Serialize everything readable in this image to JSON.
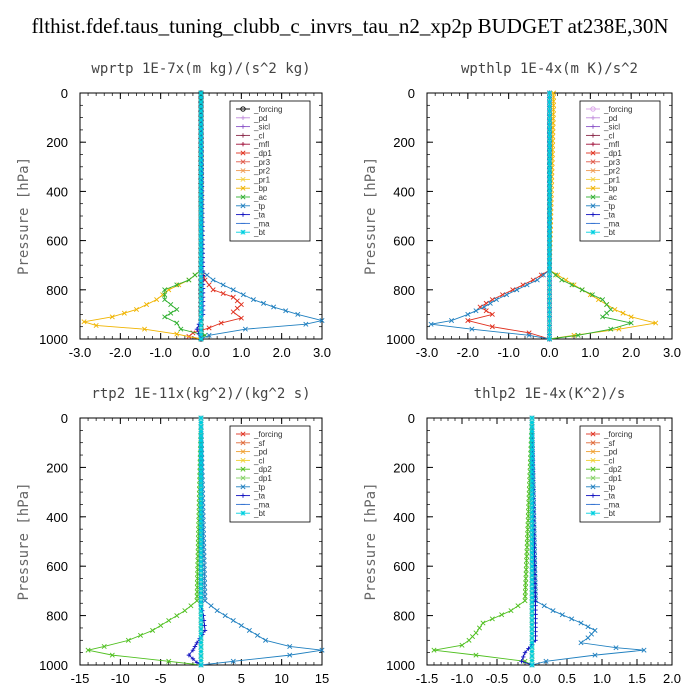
{
  "main_title": "flthist.fdef.taus_tuning_clubb_c_invrs_tau_n2_xp2p  BUDGET at238E,30N",
  "chart_data": [
    {
      "type": "line",
      "title": "wprtp   1E-7x(m kg)/(s^2 kg)",
      "ylabel": "Pressure [hPa]",
      "xlim": [
        -3,
        3
      ],
      "ylim": [
        1000,
        0
      ],
      "xticks": [
        "-3.0",
        "-2.0",
        "-1.0",
        "0.0",
        "1.0",
        "2.0",
        "3.0"
      ],
      "xtick_values": [
        -3,
        -2,
        -1,
        0,
        1,
        2,
        3
      ],
      "yticks": [
        "0",
        "200",
        "400",
        "600",
        "800",
        "1000"
      ],
      "ytick_values": [
        0,
        200,
        400,
        600,
        800,
        1000
      ],
      "grid": false,
      "legend_position": "top-right",
      "series": [
        {
          "name": "_forcing",
          "color": "#000000",
          "marker": "o",
          "p": [
            0,
            740,
            800,
            850,
            900,
            940,
            970,
            1000
          ],
          "x": [
            0,
            0,
            0,
            0,
            0,
            0,
            0,
            0
          ]
        },
        {
          "name": "_pd",
          "color": "#c08bdc",
          "marker": "+",
          "p": [
            0,
            1000
          ],
          "x": [
            0,
            0
          ]
        },
        {
          "name": "_sicl",
          "color": "#8a55c8",
          "marker": "+",
          "p": [
            0,
            1000
          ],
          "x": [
            0,
            0
          ]
        },
        {
          "name": "_cl",
          "color": "#8b2a4a",
          "marker": "+",
          "p": [
            0,
            1000
          ],
          "x": [
            0,
            0
          ]
        },
        {
          "name": "_mfl",
          "color": "#a0103a",
          "marker": "+",
          "p": [
            0,
            1000
          ],
          "x": [
            0,
            0
          ]
        },
        {
          "name": "_dp1",
          "color": "#e0301e",
          "marker": "x",
          "p": [
            0,
            720,
            760,
            800,
            830,
            860,
            890,
            915,
            935,
            955,
            975,
            990,
            1000
          ],
          "x": [
            0,
            0,
            0.1,
            0.3,
            0.8,
            1.0,
            0.8,
            1.0,
            0.5,
            0.2,
            -0.2,
            -0.3,
            0
          ]
        },
        {
          "name": "_pr3",
          "color": "#e05a4a",
          "marker": "x",
          "p": [
            0,
            1000
          ],
          "x": [
            0,
            0
          ]
        },
        {
          "name": "_pr2",
          "color": "#f09a50",
          "marker": "x",
          "p": [
            0,
            1000
          ],
          "x": [
            0,
            0
          ]
        },
        {
          "name": "_pr1",
          "color": "#f5d040",
          "marker": "x",
          "p": [
            0,
            1000
          ],
          "x": [
            0,
            0
          ]
        },
        {
          "name": "_bp",
          "color": "#f0b400",
          "marker": "x",
          "p": [
            0,
            720,
            760,
            800,
            840,
            880,
            910,
            930,
            945,
            960,
            980,
            1000
          ],
          "x": [
            0,
            0,
            -0.3,
            -0.8,
            -1.1,
            -1.6,
            -2.2,
            -2.9,
            -2.6,
            -1.4,
            -0.6,
            0
          ]
        },
        {
          "name": "_ac",
          "color": "#30b030",
          "marker": "x",
          "p": [
            0,
            720,
            760,
            800,
            840,
            880,
            910,
            935,
            960,
            985,
            1000
          ],
          "x": [
            0,
            0,
            -0.3,
            -0.9,
            -0.9,
            -0.6,
            -0.9,
            -0.6,
            -0.5,
            0.1,
            0
          ]
        },
        {
          "name": "_tp",
          "color": "#2080c0",
          "marker": "x",
          "p": [
            0,
            720,
            760,
            800,
            840,
            870,
            900,
            925,
            940,
            960,
            985,
            1000
          ],
          "x": [
            0,
            0,
            0.3,
            0.8,
            1.3,
            1.8,
            2.4,
            3.0,
            2.6,
            1.1,
            0.2,
            0
          ]
        },
        {
          "name": "_ta",
          "color": "#1010c0",
          "marker": "+",
          "p": [
            0,
            760,
            900,
            960,
            1000
          ],
          "x": [
            0,
            0.05,
            0.05,
            -0.1,
            0
          ]
        },
        {
          "name": "_ma",
          "color": "#3070d0",
          "marker": "-",
          "p": [
            0,
            1000
          ],
          "x": [
            0,
            0
          ]
        },
        {
          "name": "_bt",
          "color": "#00d0e0",
          "marker": "*",
          "p": [
            0,
            1000
          ],
          "x": [
            0,
            0
          ]
        }
      ]
    },
    {
      "type": "line",
      "title": "wpthlp   1E-4x(m K)/s^2",
      "ylabel": "Pressure [hPa]",
      "xlim": [
        -3,
        3
      ],
      "ylim": [
        1000,
        0
      ],
      "xticks": [
        "-3.0",
        "-2.0",
        "-1.0",
        "0.0",
        "1.0",
        "2.0",
        "3.0"
      ],
      "xtick_values": [
        -3,
        -2,
        -1,
        0,
        1,
        2,
        3
      ],
      "yticks": [
        "0",
        "200",
        "400",
        "600",
        "800",
        "1000"
      ],
      "ytick_values": [
        0,
        200,
        400,
        600,
        800,
        1000
      ],
      "grid": false,
      "legend_position": "top-right",
      "series": [
        {
          "name": "_forcing",
          "color": "#d8a0e8",
          "marker": "o",
          "p": [
            0,
            1000
          ],
          "x": [
            0,
            0
          ]
        },
        {
          "name": "_pd",
          "color": "#c08bdc",
          "marker": "+",
          "p": [
            0,
            1000
          ],
          "x": [
            0,
            0
          ]
        },
        {
          "name": "_sicl",
          "color": "#8a55c8",
          "marker": "+",
          "p": [
            0,
            1000
          ],
          "x": [
            0,
            0
          ]
        },
        {
          "name": "_cl",
          "color": "#8b2a4a",
          "marker": "+",
          "p": [
            0,
            1000
          ],
          "x": [
            0,
            0
          ]
        },
        {
          "name": "_mfl",
          "color": "#a0103a",
          "marker": "+",
          "p": [
            0,
            1000
          ],
          "x": [
            0,
            0
          ]
        },
        {
          "name": "_dp1",
          "color": "#e0301e",
          "marker": "x",
          "p": [
            0,
            720,
            760,
            800,
            840,
            870,
            900,
            925,
            950,
            975,
            1000
          ],
          "x": [
            0,
            0,
            -0.4,
            -0.9,
            -1.4,
            -1.7,
            -1.4,
            -2.0,
            -1.4,
            -0.5,
            0
          ]
        },
        {
          "name": "_pr3",
          "color": "#e05a4a",
          "marker": "x",
          "p": [
            0,
            1000
          ],
          "x": [
            0,
            0
          ]
        },
        {
          "name": "_pr2",
          "color": "#f09a50",
          "marker": "x",
          "p": [
            0,
            1000
          ],
          "x": [
            0,
            0
          ]
        },
        {
          "name": "_pr1",
          "color": "#f5d040",
          "marker": "x",
          "p": [
            0,
            1000
          ],
          "x": [
            0,
            0
          ]
        },
        {
          "name": "_bp",
          "color": "#f0b400",
          "marker": "x",
          "p": [
            0,
            0,
            50,
            720,
            760,
            800,
            840,
            880,
            910,
            935,
            960,
            985,
            1000
          ],
          "x": [
            0,
            0.1,
            0.1,
            0,
            0.4,
            0.8,
            1.2,
            1.6,
            2.0,
            2.6,
            1.7,
            0.6,
            0
          ]
        },
        {
          "name": "_ac",
          "color": "#30b030",
          "marker": "x",
          "p": [
            0,
            720,
            760,
            800,
            840,
            880,
            910,
            935,
            960,
            985,
            1000
          ],
          "x": [
            0,
            0,
            0.3,
            0.8,
            1.3,
            1.5,
            1.3,
            2.0,
            1.5,
            0.7,
            0
          ]
        },
        {
          "name": "_tp",
          "color": "#2080c0",
          "marker": "x",
          "p": [
            0,
            720,
            760,
            800,
            840,
            870,
            900,
            925,
            940,
            960,
            985,
            1000
          ],
          "x": [
            0,
            0,
            -0.3,
            -0.8,
            -1.3,
            -1.6,
            -2.0,
            -2.4,
            -2.9,
            -1.9,
            -0.5,
            0
          ]
        },
        {
          "name": "_ta",
          "color": "#1010c0",
          "marker": "+",
          "p": [
            0,
            1000
          ],
          "x": [
            0,
            0
          ]
        },
        {
          "name": "_ma",
          "color": "#3070d0",
          "marker": "-",
          "p": [
            0,
            1000
          ],
          "x": [
            0,
            0
          ]
        },
        {
          "name": "_bt",
          "color": "#00d0e0",
          "marker": "*",
          "p": [
            0,
            1000
          ],
          "x": [
            0,
            0
          ]
        }
      ]
    },
    {
      "type": "line",
      "title": "rtp2   1E-11x(kg^2)/(kg^2 s)",
      "ylabel": "Pressure [hPa]",
      "xlim": [
        -15,
        15
      ],
      "ylim": [
        1000,
        0
      ],
      "xticks": [
        "-15",
        "-10",
        "-5",
        "0",
        "5",
        "10",
        "15"
      ],
      "xtick_values": [
        -15,
        -10,
        -5,
        0,
        5,
        10,
        15
      ],
      "yticks": [
        "0",
        "200",
        "400",
        "600",
        "800",
        "1000"
      ],
      "ytick_values": [
        0,
        200,
        400,
        600,
        800,
        1000
      ],
      "grid": false,
      "legend_position": "top-right",
      "series": [
        {
          "name": "_forcing",
          "color": "#e03020",
          "marker": "x",
          "p": [
            0,
            1000
          ],
          "x": [
            0,
            0
          ]
        },
        {
          "name": "_sf",
          "color": "#e06a3a",
          "marker": "x",
          "p": [
            0,
            1000
          ],
          "x": [
            0,
            0
          ]
        },
        {
          "name": "_pd",
          "color": "#f0a030",
          "marker": "x",
          "p": [
            0,
            1000
          ],
          "x": [
            0,
            0
          ]
        },
        {
          "name": "_cl",
          "color": "#f0d030",
          "marker": "x",
          "p": [
            0,
            1000
          ],
          "x": [
            0,
            0
          ]
        },
        {
          "name": "_dp2",
          "color": "#50c020",
          "marker": "x",
          "p": [
            0,
            740,
            780,
            820,
            860,
            900,
            925,
            940,
            960,
            985,
            1000
          ],
          "x": [
            0,
            -0.5,
            -2,
            -4,
            -6,
            -9,
            -12,
            -14,
            -11,
            -4,
            0
          ]
        },
        {
          "name": "_dp1",
          "color": "#80d060",
          "marker": "x",
          "p": [
            0,
            1000
          ],
          "x": [
            0,
            0
          ]
        },
        {
          "name": "_tp",
          "color": "#2080c0",
          "marker": "x",
          "p": [
            0,
            740,
            780,
            820,
            860,
            900,
            925,
            940,
            960,
            985,
            1000
          ],
          "x": [
            0,
            0.5,
            2,
            4,
            6,
            8,
            11,
            15,
            11,
            4,
            0
          ]
        },
        {
          "name": "_ta",
          "color": "#1010c0",
          "marker": "+",
          "p": [
            0,
            760,
            800,
            860,
            910,
            940,
            960,
            990,
            1000
          ],
          "x": [
            0,
            0,
            0.3,
            0.5,
            -0.5,
            -1,
            -1.5,
            -0.5,
            0
          ]
        },
        {
          "name": "_ma",
          "color": "#3070d0",
          "marker": "-",
          "p": [
            0,
            1000
          ],
          "x": [
            0,
            0
          ]
        },
        {
          "name": "_bt",
          "color": "#00d0e0",
          "marker": "*",
          "p": [
            0,
            1000
          ],
          "x": [
            0,
            0
          ]
        }
      ]
    },
    {
      "type": "line",
      "title": "thlp2   1E-4x(K^2)/s",
      "ylabel": "Pressure [hPa]",
      "xlim": [
        -1.5,
        2.0
      ],
      "ylim": [
        1000,
        0
      ],
      "xticks": [
        "-1.5",
        "-1.0",
        "-0.5",
        "0.0",
        "0.5",
        "1.0",
        "1.5",
        "2.0"
      ],
      "xtick_values": [
        -1.5,
        -1.0,
        -0.5,
        0.0,
        0.5,
        1.0,
        1.5,
        2.0
      ],
      "yticks": [
        "0",
        "200",
        "400",
        "600",
        "800",
        "1000"
      ],
      "ytick_values": [
        0,
        200,
        400,
        600,
        800,
        1000
      ],
      "grid": false,
      "legend_position": "top-right",
      "series": [
        {
          "name": "_forcing",
          "color": "#e03020",
          "marker": "x",
          "p": [
            0,
            1000
          ],
          "x": [
            0,
            0
          ]
        },
        {
          "name": "_sf",
          "color": "#e06a3a",
          "marker": "x",
          "p": [
            0,
            1000
          ],
          "x": [
            0,
            0
          ]
        },
        {
          "name": "_pd",
          "color": "#f0a030",
          "marker": "x",
          "p": [
            0,
            1000
          ],
          "x": [
            0,
            0
          ]
        },
        {
          "name": "_cl",
          "color": "#f0d030",
          "marker": "x",
          "p": [
            0,
            1000
          ],
          "x": [
            0,
            0
          ]
        },
        {
          "name": "_dp2",
          "color": "#50c020",
          "marker": "x",
          "p": [
            0,
            740,
            780,
            830,
            870,
            900,
            920,
            940,
            960,
            985,
            1000
          ],
          "x": [
            0,
            -0.1,
            -0.3,
            -0.7,
            -0.8,
            -0.9,
            -1.0,
            -1.4,
            -0.8,
            -0.1,
            0
          ]
        },
        {
          "name": "_dp1",
          "color": "#80d060",
          "marker": "x",
          "p": [
            0,
            1000
          ],
          "x": [
            0,
            0
          ]
        },
        {
          "name": "_tp",
          "color": "#2080c0",
          "marker": "x",
          "p": [
            0,
            740,
            780,
            830,
            860,
            890,
            910,
            930,
            940,
            960,
            985,
            1000
          ],
          "x": [
            0,
            0.05,
            0.3,
            0.7,
            0.9,
            0.8,
            0.7,
            1.2,
            1.6,
            0.9,
            0.2,
            0
          ]
        },
        {
          "name": "_ta",
          "color": "#1010c0",
          "marker": "+",
          "p": [
            0,
            760,
            900,
            950,
            985,
            1000
          ],
          "x": [
            0,
            0.05,
            0.05,
            -0.1,
            -0.15,
            0
          ]
        },
        {
          "name": "_ma",
          "color": "#3070d0",
          "marker": "-",
          "p": [
            0,
            1000
          ],
          "x": [
            0,
            0
          ]
        },
        {
          "name": "_bt",
          "color": "#00d0e0",
          "marker": "*",
          "p": [
            0,
            1000
          ],
          "x": [
            0,
            0
          ]
        }
      ]
    }
  ]
}
